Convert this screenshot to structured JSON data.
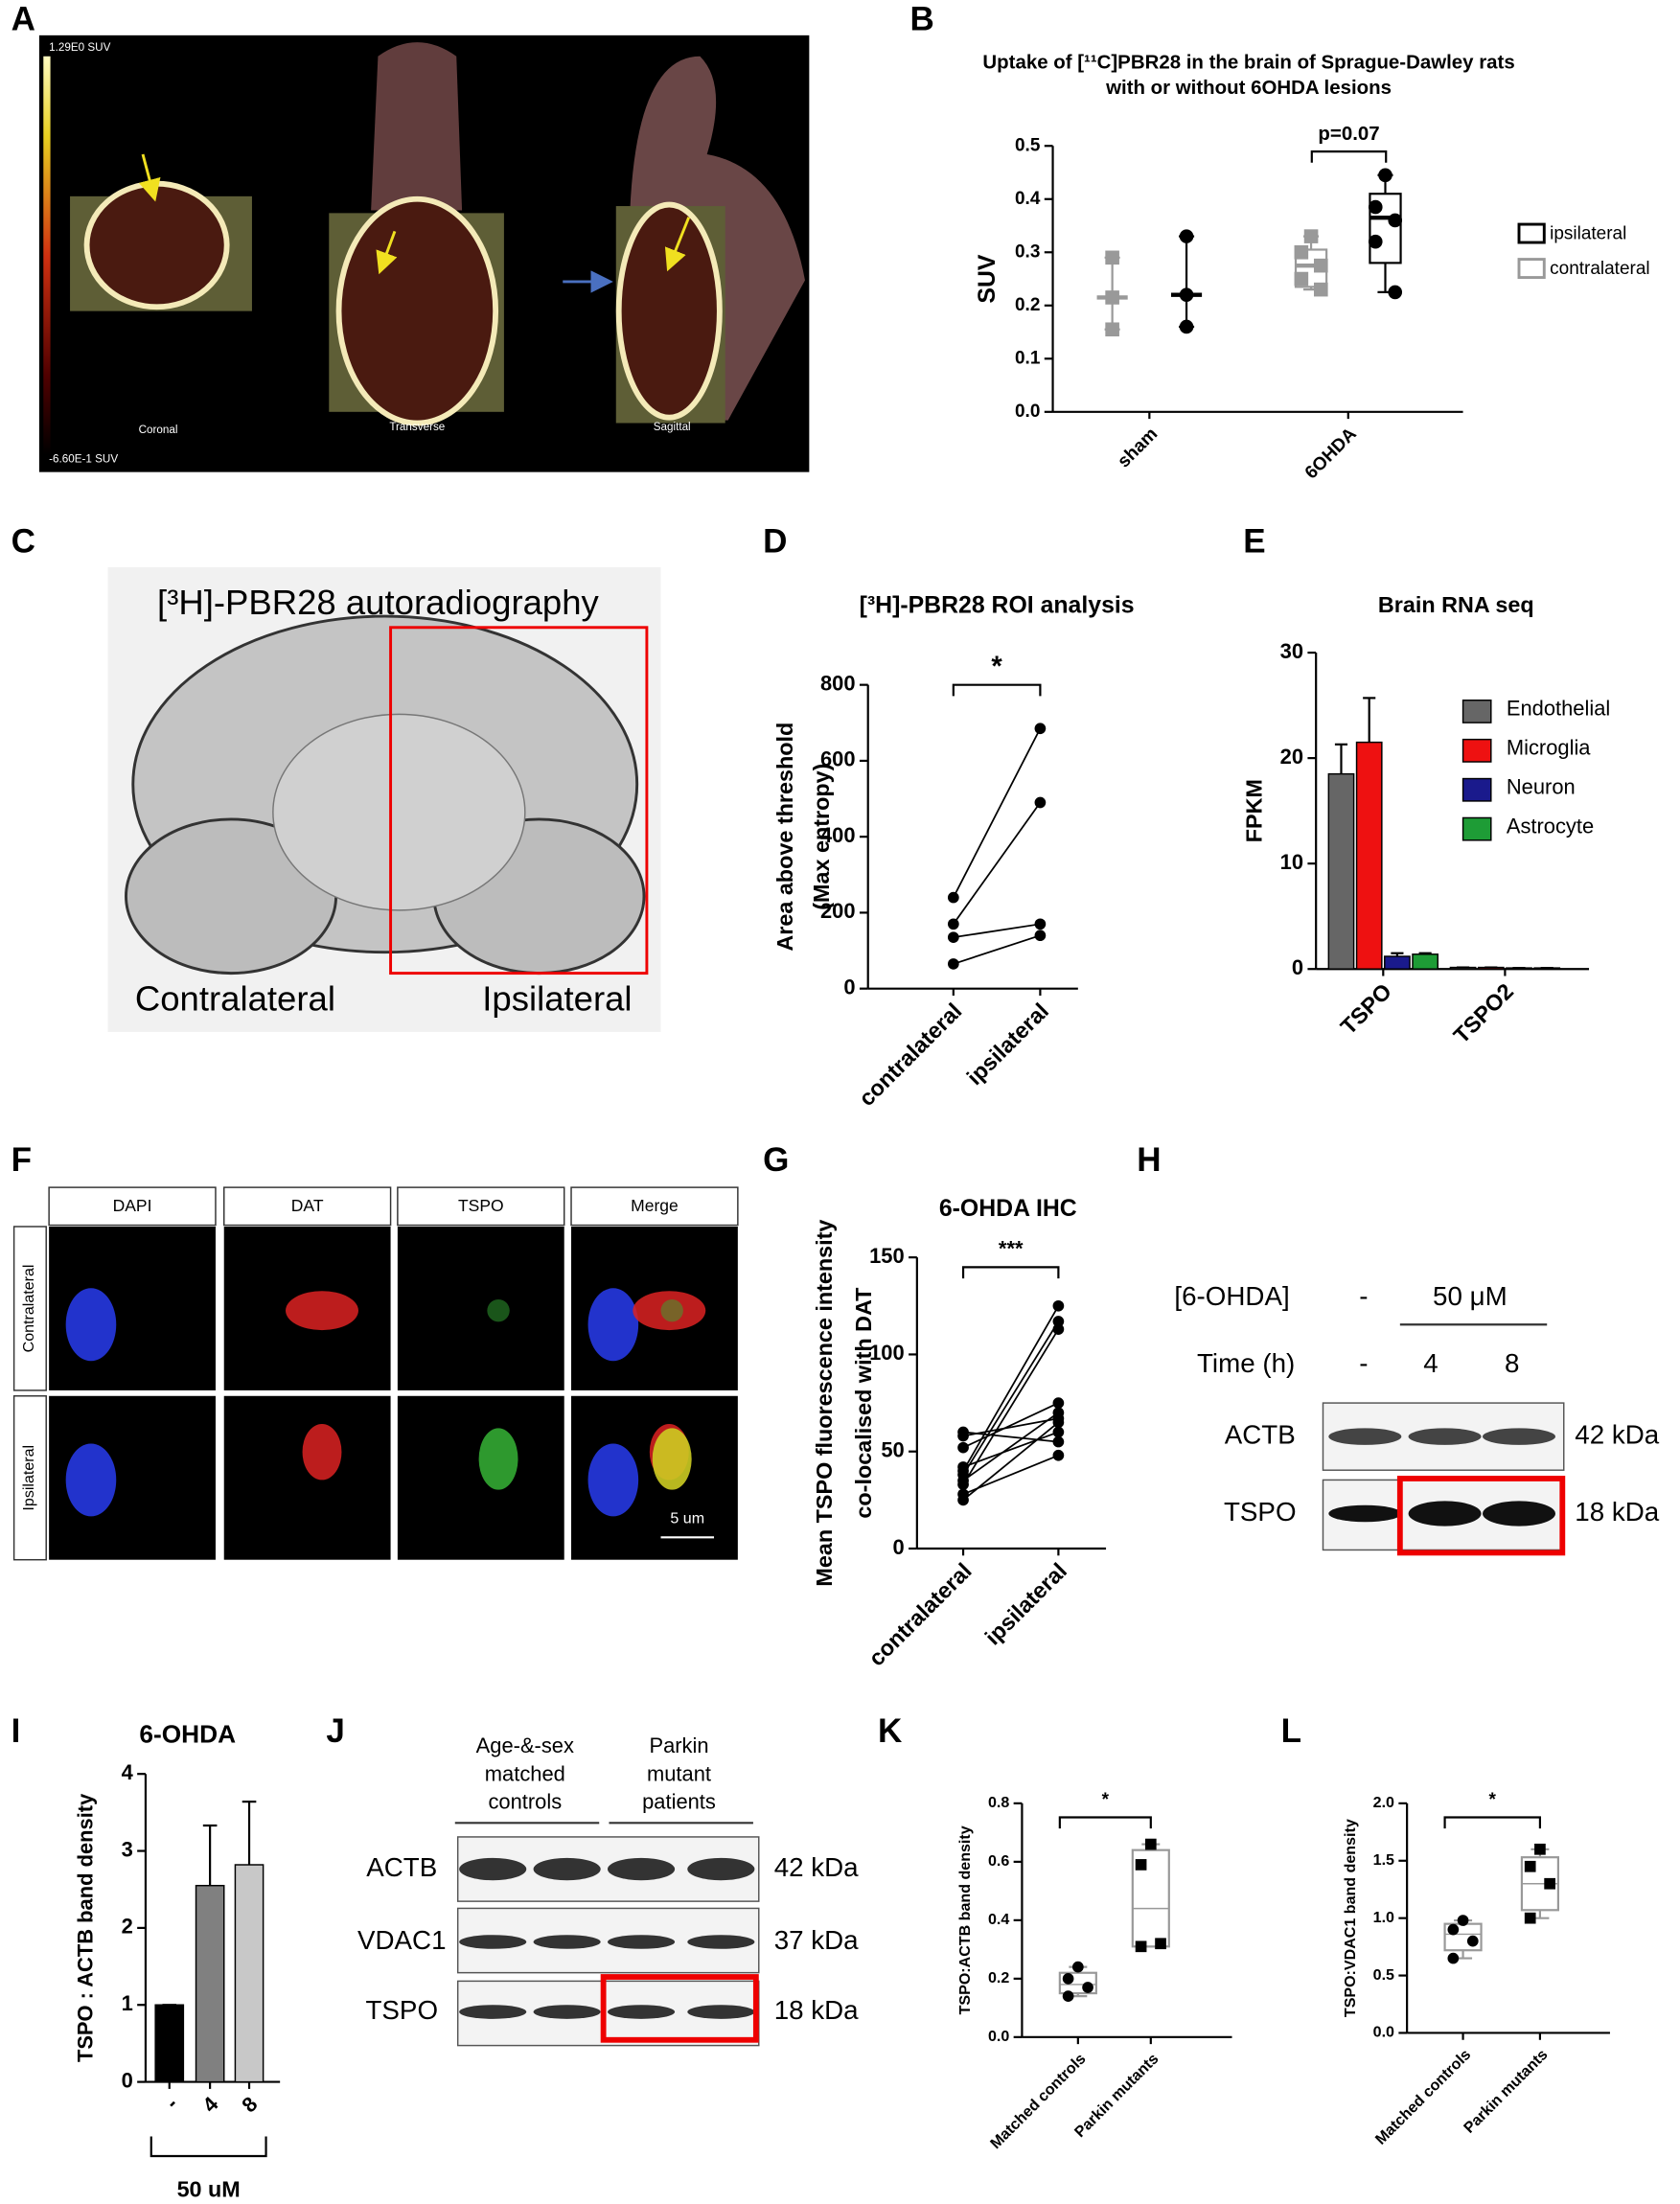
{
  "panel_labels": [
    "A",
    "B",
    "C",
    "D",
    "E",
    "F",
    "G",
    "H",
    "I",
    "J",
    "K",
    "L"
  ],
  "panel_a": {
    "scale_max": "1.29E0 SUV",
    "scale_min": "-6.60E-1 SUV",
    "views": [
      "Coronal",
      "Transverse",
      "Sagittal"
    ]
  },
  "panel_c": {
    "title": "[³H]-PBR28 autoradiography",
    "left": "Contralateral",
    "right": "Ipsilateral"
  },
  "panel_f": {
    "columns": [
      "DAPI",
      "DAT",
      "TSPO",
      "Merge"
    ],
    "rows": [
      "Contralateral",
      "Ipsilateral"
    ],
    "scale_bar": "5 um"
  },
  "panel_h": {
    "dose_label": "[6-OHDA]",
    "dose_control": "-",
    "dose": "50 μM",
    "time_label": "Time (h)",
    "times": [
      "-",
      "4",
      "8"
    ],
    "bands": [
      {
        "protein": "ACTB",
        "size": "42 kDa"
      },
      {
        "protein": "TSPO",
        "size": "18 kDa"
      }
    ]
  },
  "panel_j": {
    "groups": [
      [
        "Age-&-sex",
        "matched",
        "controls"
      ],
      [
        "Parkin",
        "mutant",
        "patients"
      ]
    ],
    "bands": [
      {
        "protein": "ACTB",
        "size": "42 kDa"
      },
      {
        "protein": "VDAC1",
        "size": "37 kDa"
      },
      {
        "protein": "TSPO",
        "size": "18 kDa"
      }
    ]
  },
  "chart_data": [
    {
      "type": "box",
      "title": [
        "Uptake of [¹¹C]PBR28 in the brain of Sprague-Dawley rats",
        "with or without 6OHDA lesions"
      ],
      "ylabel": "SUV",
      "categories": [
        "sham",
        "6OHDA"
      ],
      "ylim": [
        0,
        0.5
      ],
      "yticks": [
        {
          "value": 0,
          "label": "0.0"
        },
        0.1,
        0.2,
        0.3,
        0.4,
        0.5
      ],
      "annotation": "p=0.07",
      "legend": "right",
      "series": [
        {
          "name": "ipsilateral",
          "color": "#000000",
          "marker": "circle",
          "boxes": [
            {
              "low": 0.16,
              "median": 0.22,
              "high": 0.33
            },
            {
              "low": 0.225,
              "q1": 0.28,
              "median": 0.365,
              "q3": 0.41,
              "high": 0.445
            }
          ],
          "points": [
            [
              0.33,
              0.22,
              0.16
            ],
            [
              0.445,
              0.385,
              0.36,
              0.32,
              0.225
            ]
          ]
        },
        {
          "name": "contralateral",
          "color": "#999999",
          "marker": "square",
          "boxes": [
            {
              "low": 0.155,
              "median": 0.215,
              "high": 0.29
            },
            {
              "low": 0.23,
              "q1": 0.235,
              "median": 0.275,
              "q3": 0.305,
              "high": 0.33
            }
          ],
          "points": [
            [
              0.29,
              0.215,
              0.155
            ],
            [
              0.33,
              0.3,
              0.275,
              0.25,
              0.23
            ]
          ]
        }
      ]
    },
    {
      "type": "paired",
      "title": "[³H]-PBR28 ROI analysis",
      "ylabel": [
        "Area above threshold",
        "(Max entropy)"
      ],
      "categories": [
        "contralateral",
        "ipsilateral"
      ],
      "ylim": [
        0,
        800
      ],
      "yticks": [
        0,
        200,
        400,
        600,
        800
      ],
      "annotation": "*",
      "pairs": [
        [
          240,
          685
        ],
        [
          170,
          490
        ],
        [
          135,
          170
        ],
        [
          65,
          140
        ]
      ]
    },
    {
      "type": "bar",
      "title": "Brain RNA seq",
      "ylabel": "FPKM",
      "categories": [
        "TSPO",
        "TSPO2"
      ],
      "ylim": [
        0,
        30
      ],
      "yticks": [
        0,
        10,
        20,
        30
      ],
      "legend": "right",
      "series": [
        {
          "name": "Endothelial",
          "color": "#666666",
          "values": [
            18.5,
            0.15
          ],
          "errors": [
            2.8,
            0
          ]
        },
        {
          "name": "Microglia",
          "color": "#ee1111",
          "values": [
            21.5,
            0.15
          ],
          "errors": [
            4.2,
            0
          ]
        },
        {
          "name": "Neuron",
          "color": "#1a1a8c",
          "values": [
            1.2,
            0.1
          ],
          "errors": [
            0.3,
            0
          ]
        },
        {
          "name": "Astrocyte",
          "color": "#1e9c36",
          "values": [
            1.4,
            0.1
          ],
          "errors": [
            0.1,
            0
          ]
        }
      ]
    },
    {
      "type": "paired",
      "title": "6-OHDA IHC",
      "ylabel": [
        "Mean TSPO fluorescence intensity",
        "co-localised with DAT"
      ],
      "categories": [
        "contralateral",
        "ipsilateral"
      ],
      "ylim": [
        0,
        150
      ],
      "yticks": [
        0,
        50,
        100,
        150
      ],
      "annotation": "***",
      "pairs": [
        [
          25,
          65
        ],
        [
          28,
          48
        ],
        [
          33,
          113
        ],
        [
          35,
          70
        ],
        [
          38,
          117
        ],
        [
          40,
          125
        ],
        [
          42,
          60
        ],
        [
          52,
          75
        ],
        [
          58,
          67
        ],
        [
          60,
          55
        ]
      ]
    },
    {
      "type": "bar",
      "title": "6-OHDA",
      "ylabel": "TSPO : ACTB band density",
      "categories": [
        "-",
        "4",
        "8"
      ],
      "ylim": [
        0,
        4
      ],
      "yticks": [
        0,
        1,
        2,
        3,
        4
      ],
      "bracket_label": "50 uM",
      "series": [
        {
          "values": [
            1,
            2.55,
            2.82
          ],
          "errors": [
            0,
            0.78,
            0.82
          ],
          "colors": [
            "#000000",
            "#808080",
            "#c8c8c8"
          ]
        }
      ]
    },
    {
      "type": "box",
      "ylabel": "TSPO:ACTB band density",
      "categories": [
        "Matched controls",
        "Parkin mutants"
      ],
      "ylim": [
        0,
        0.8
      ],
      "yticks": [
        {
          "value": 0,
          "label": "0.0"
        },
        0.2,
        0.4,
        0.6,
        0.8
      ],
      "annotation": "*",
      "series": [
        {
          "color": "#000000",
          "box_color": "#999999",
          "markers": [
            "circle",
            "square"
          ],
          "boxes": [
            {
              "low": 0.14,
              "q1": 0.15,
              "median": 0.18,
              "q3": 0.22,
              "high": 0.24
            },
            {
              "low": 0.31,
              "q1": 0.31,
              "median": 0.44,
              "q3": 0.64,
              "high": 0.66
            }
          ],
          "points": [
            [
              0.24,
              0.2,
              0.17,
              0.14
            ],
            [
              0.66,
              0.59,
              0.32,
              0.31
            ]
          ]
        }
      ]
    },
    {
      "type": "box",
      "ylabel": "TSPO:VDAC1 band density",
      "categories": [
        "Matched controls",
        "Parkin mutants"
      ],
      "ylim": [
        0,
        2
      ],
      "yticks": [
        {
          "value": 0,
          "label": "0.0"
        },
        0.5,
        {
          "value": 1,
          "label": "1.0"
        },
        1.5,
        {
          "value": 2,
          "label": "2.0"
        }
      ],
      "annotation": "*",
      "series": [
        {
          "color": "#000000",
          "box_color": "#999999",
          "markers": [
            "circle",
            "square"
          ],
          "boxes": [
            {
              "low": 0.65,
              "q1": 0.72,
              "median": 0.86,
              "q3": 0.95,
              "high": 0.98
            },
            {
              "low": 1.0,
              "q1": 1.07,
              "median": 1.3,
              "q3": 1.53,
              "high": 1.6
            }
          ],
          "points": [
            [
              0.98,
              0.9,
              0.8,
              0.65
            ],
            [
              1.6,
              1.45,
              1.3,
              1.0
            ]
          ]
        }
      ]
    }
  ]
}
